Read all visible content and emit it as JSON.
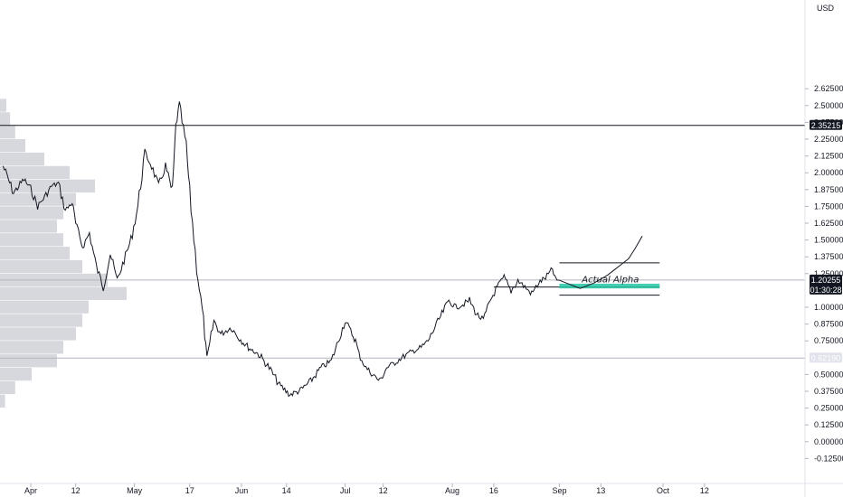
{
  "chart_data": {
    "type": "line",
    "title": "",
    "xlabel": "",
    "ylabel": "",
    "currency_label": "USD",
    "ylim": [
      -0.25,
      2.65
    ],
    "x_ticks": [
      "Apr",
      "12",
      "May",
      "17",
      "Jun",
      "14",
      "Jul",
      "12",
      "Aug",
      "16",
      "Sep",
      "13",
      "Oct",
      "12"
    ],
    "x_tick_days": [
      0,
      13,
      30,
      46,
      61,
      74,
      91,
      102,
      122,
      134,
      153,
      165,
      183,
      195
    ],
    "y_ticks": [
      "2.62500",
      "2.50000",
      "2.37500",
      "2.25000",
      "2.12500",
      "2.00000",
      "1.87500",
      "1.75000",
      "1.62500",
      "1.50000",
      "1.37500",
      "1.25000",
      "1.00000",
      "0.87500",
      "0.75000",
      "0.50000",
      "0.37500",
      "0.25000",
      "0.12500",
      "0.00000",
      "-0.12500"
    ],
    "y_tick_values": [
      2.625,
      2.5,
      2.375,
      2.25,
      2.125,
      2.0,
      1.875,
      1.75,
      1.625,
      1.5,
      1.375,
      1.25,
      1.0,
      0.875,
      0.75,
      0.5,
      0.375,
      0.25,
      0.125,
      0.0,
      -0.125
    ],
    "price_series": {
      "x": [
        -8,
        -5,
        -2,
        0,
        2,
        4,
        6,
        8,
        10,
        12,
        13,
        15,
        17,
        19,
        21,
        23,
        25,
        27,
        29,
        31,
        33,
        35,
        37,
        39,
        41,
        42,
        43,
        45,
        46,
        48,
        50,
        51,
        53,
        55,
        58,
        60,
        63,
        66,
        69,
        72,
        75,
        78,
        81,
        84,
        87,
        89,
        91,
        93,
        94,
        95,
        97,
        99,
        101,
        103,
        105,
        107,
        109,
        111,
        113,
        115,
        117,
        119,
        121,
        123,
        125,
        127,
        129,
        131,
        133,
        135,
        137,
        139,
        141,
        143,
        145,
        147,
        149,
        151,
        152,
        153
      ],
      "y": [
        2.05,
        1.85,
        1.95,
        1.88,
        1.75,
        1.82,
        1.9,
        1.92,
        1.72,
        1.78,
        1.62,
        1.45,
        1.55,
        1.3,
        1.15,
        1.4,
        1.2,
        1.35,
        1.5,
        1.75,
        2.15,
        2.05,
        1.9,
        2.05,
        1.85,
        2.35,
        2.5,
        2.2,
        1.85,
        1.3,
        0.9,
        0.6,
        0.9,
        0.8,
        0.85,
        0.78,
        0.7,
        0.65,
        0.55,
        0.42,
        0.35,
        0.38,
        0.45,
        0.55,
        0.6,
        0.75,
        0.9,
        0.8,
        0.75,
        0.65,
        0.55,
        0.5,
        0.45,
        0.55,
        0.58,
        0.62,
        0.65,
        0.68,
        0.7,
        0.75,
        0.85,
        0.95,
        1.05,
        1.0,
        1.02,
        1.05,
        0.95,
        0.9,
        1.05,
        1.15,
        1.22,
        1.12,
        1.2,
        1.15,
        1.1,
        1.18,
        1.22,
        1.28,
        1.2,
        1.2
      ]
    },
    "projection_path": {
      "x": [
        153,
        155,
        157,
        159,
        161,
        163,
        165,
        167,
        169,
        171,
        173,
        175,
        177
      ],
      "y": [
        1.2,
        1.18,
        1.16,
        1.14,
        1.16,
        1.18,
        1.21,
        1.24,
        1.28,
        1.32,
        1.36,
        1.44,
        1.53
      ]
    },
    "horizontal_levels": [
      {
        "value": 2.35215,
        "label": "2.35215",
        "style": "solid",
        "color": "#131722",
        "tag_bg": "#131722"
      },
      {
        "value": 1.20255,
        "label": "1.20255",
        "sublabel": "01:30:28",
        "style": "solid",
        "color": "#b2b5be",
        "tag_bg": "#131722"
      },
      {
        "value": 0.6219,
        "label": "0.62190",
        "style": "solid",
        "color": "#b2b5be",
        "tag_bg": "#e0e3eb",
        "tag_text": "#131722"
      }
    ],
    "range_box": {
      "x_start": 153,
      "x_end": 182,
      "top": 1.33,
      "bottom": 1.09,
      "mid_line": 1.15,
      "mid_line_start": 134
    },
    "highlight_band": {
      "x_start": 153,
      "x_end": 182,
      "y_low": 1.15,
      "y_high": 1.165,
      "color": "#26c6a6"
    },
    "annotation": "Actual Alpha",
    "volume_profile": {
      "levels": [
        2.5,
        2.4,
        2.3,
        2.2,
        2.1,
        2.0,
        1.9,
        1.8,
        1.7,
        1.6,
        1.5,
        1.4,
        1.3,
        1.2,
        1.1,
        1.0,
        0.9,
        0.8,
        0.7,
        0.6,
        0.5,
        0.4,
        0.3
      ],
      "volumes": [
        0.05,
        0.08,
        0.12,
        0.2,
        0.35,
        0.55,
        0.75,
        0.6,
        0.5,
        0.45,
        0.5,
        0.55,
        0.65,
        0.85,
        1.0,
        0.7,
        0.65,
        0.6,
        0.5,
        0.45,
        0.25,
        0.12,
        0.04
      ]
    },
    "grid": false,
    "legend": "none"
  }
}
